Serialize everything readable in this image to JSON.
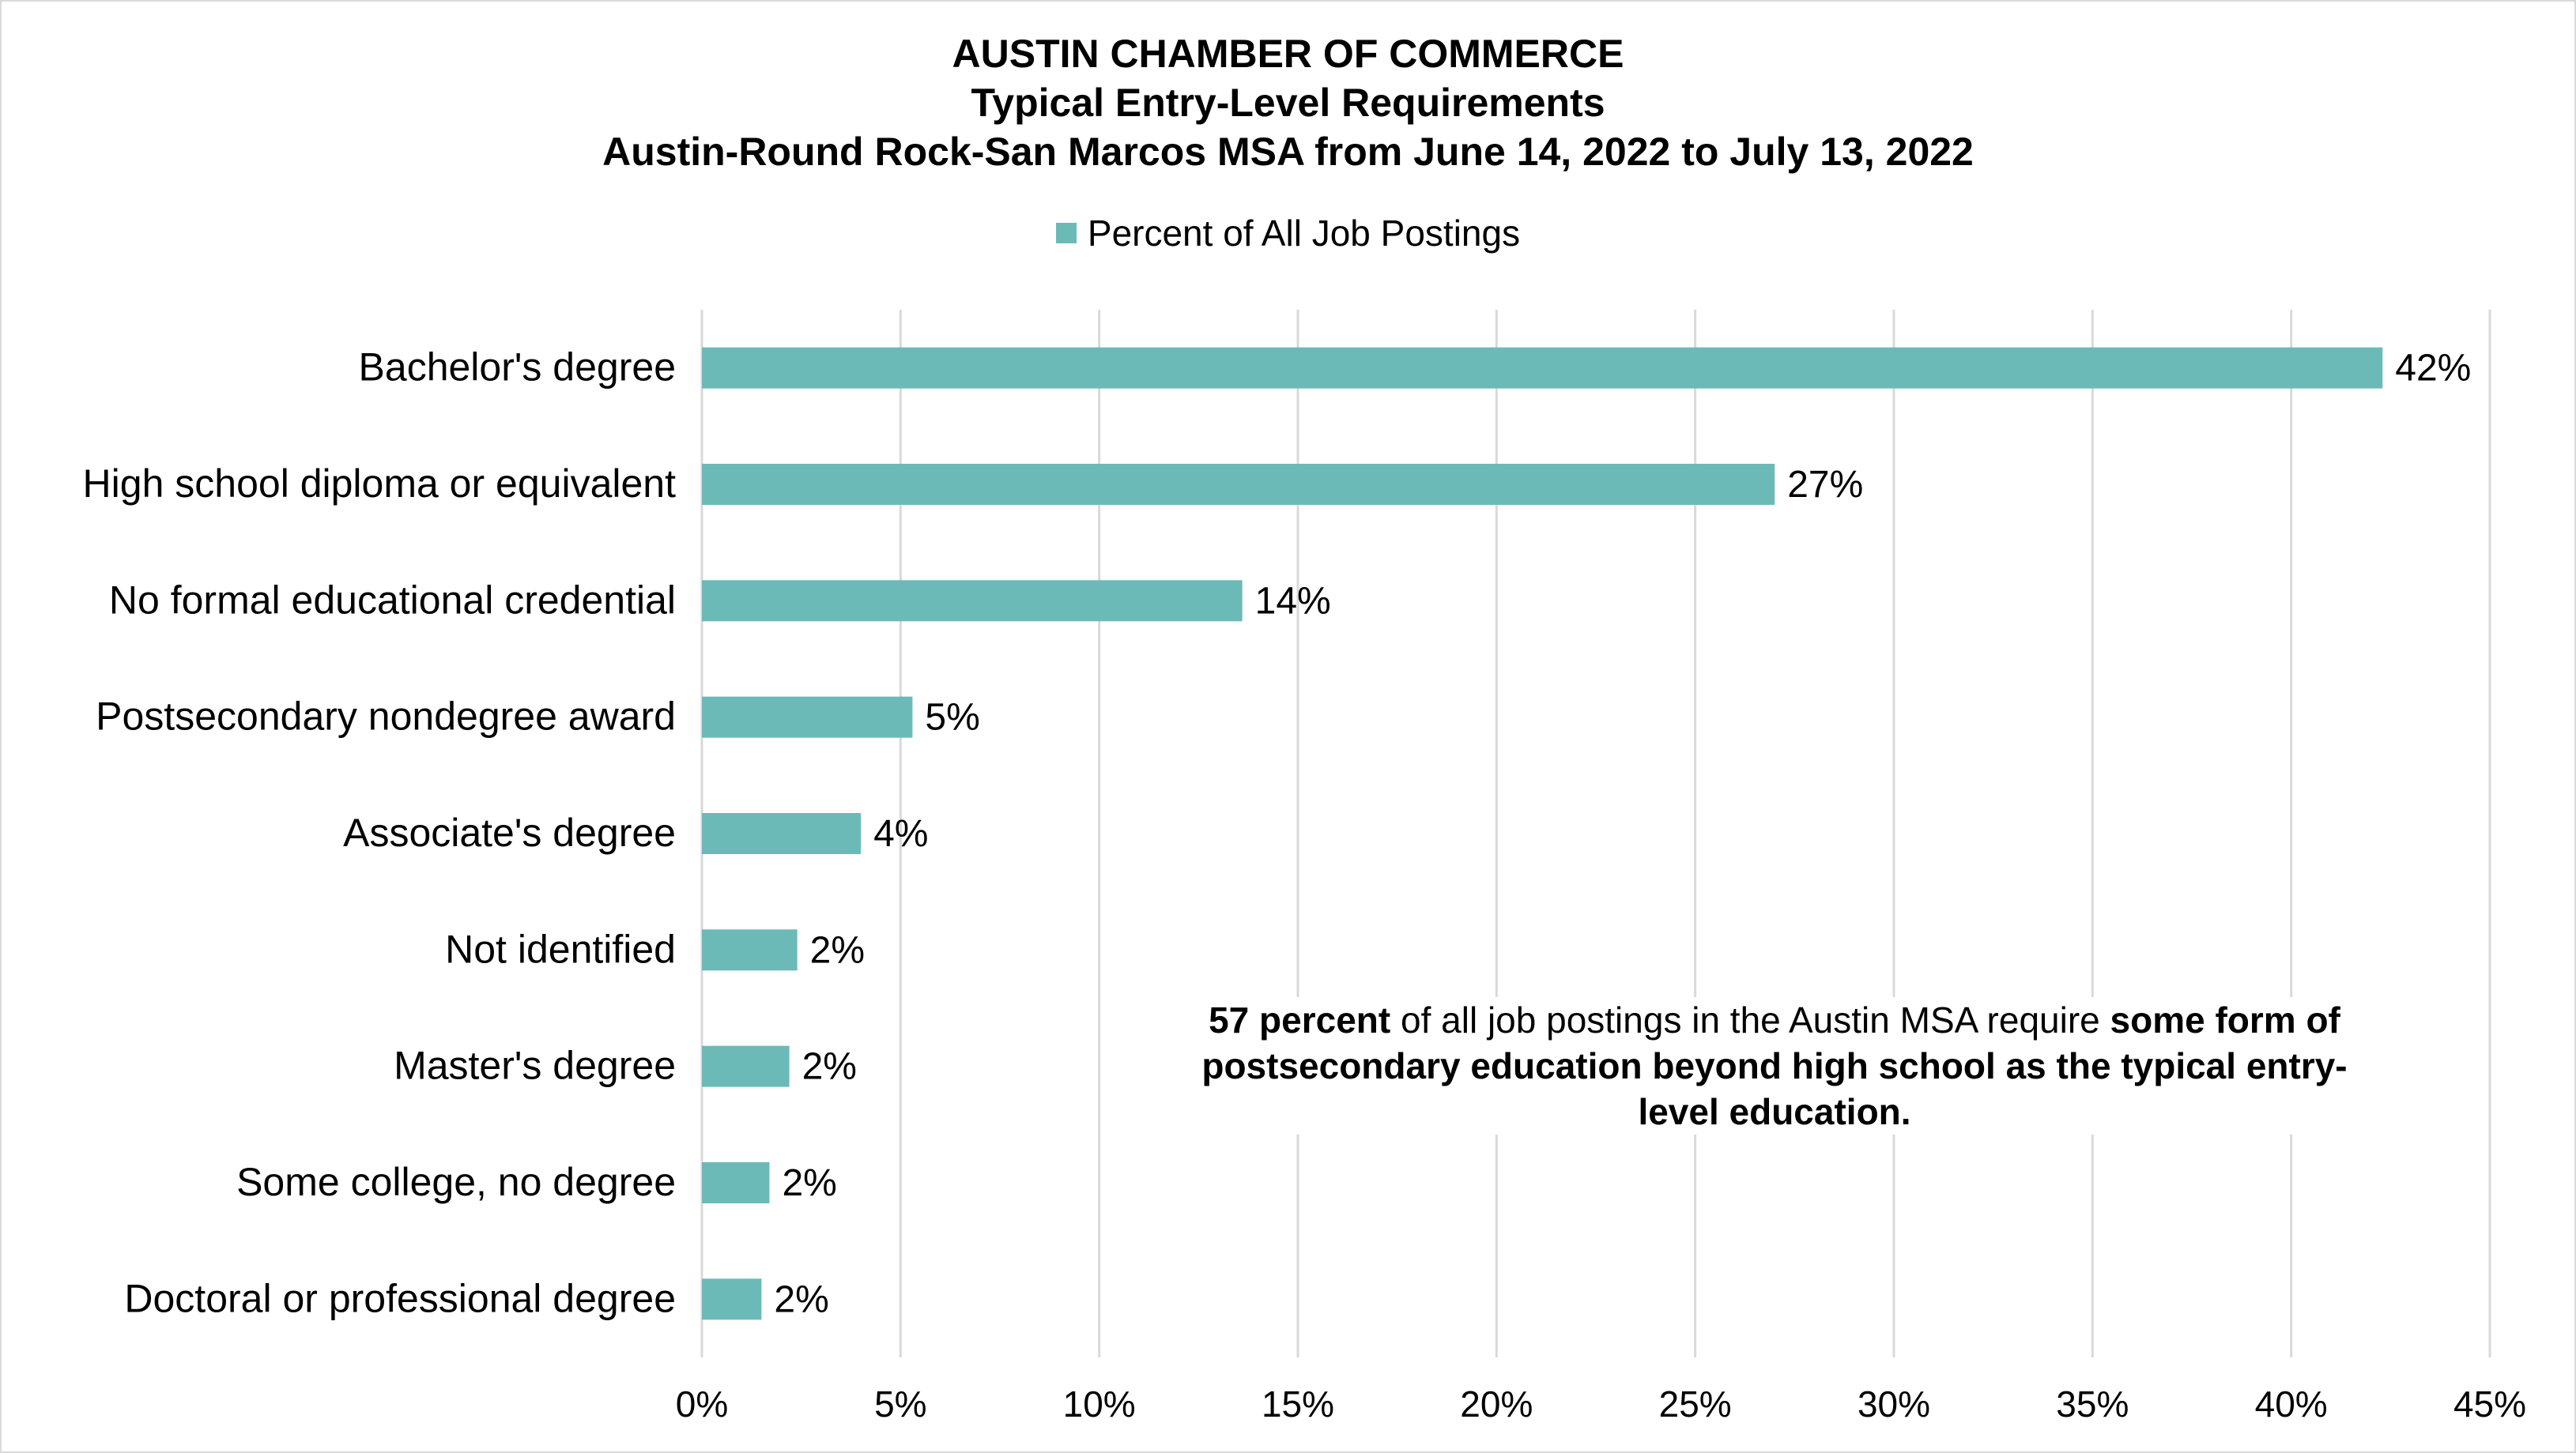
{
  "chart_data": {
    "type": "bar",
    "orientation": "horizontal",
    "title": [
      "AUSTIN CHAMBER OF COMMERCE",
      "Typical Entry-Level Requirements",
      "Austin-Round Rock-San Marcos MSA from June 14, 2022 to July 13, 2022"
    ],
    "categories": [
      "Bachelor's degree",
      "High school diploma or equivalent",
      "No formal educational credential",
      "Postsecondary nondegree award",
      "Associate's degree",
      "Not identified",
      "Master's degree",
      "Some college, no degree",
      "Doctoral or professional degree"
    ],
    "series": [
      {
        "name": "Percent of All Job Postings",
        "values": [
          42.3,
          27.0,
          13.6,
          5.3,
          4.0,
          2.4,
          2.2,
          1.7,
          1.5
        ],
        "labels": [
          "42%",
          "27%",
          "14%",
          "5%",
          "4%",
          "2%",
          "2%",
          "2%",
          "2%"
        ]
      }
    ],
    "xlim": [
      0,
      45
    ],
    "xticks": [
      "0%",
      "5%",
      "10%",
      "15%",
      "20%",
      "25%",
      "30%",
      "35%",
      "40%",
      "45%"
    ],
    "xlabel": "",
    "ylabel": "",
    "grid": "vertical",
    "legend_position": "top",
    "bar_color": "#6cbab8",
    "annotation": {
      "bold_1": "57 percent",
      "text_1": " of all job postings in the Austin MSA require ",
      "bold_2": "some form of postsecondary education beyond high school as the typical entry-level education."
    }
  }
}
